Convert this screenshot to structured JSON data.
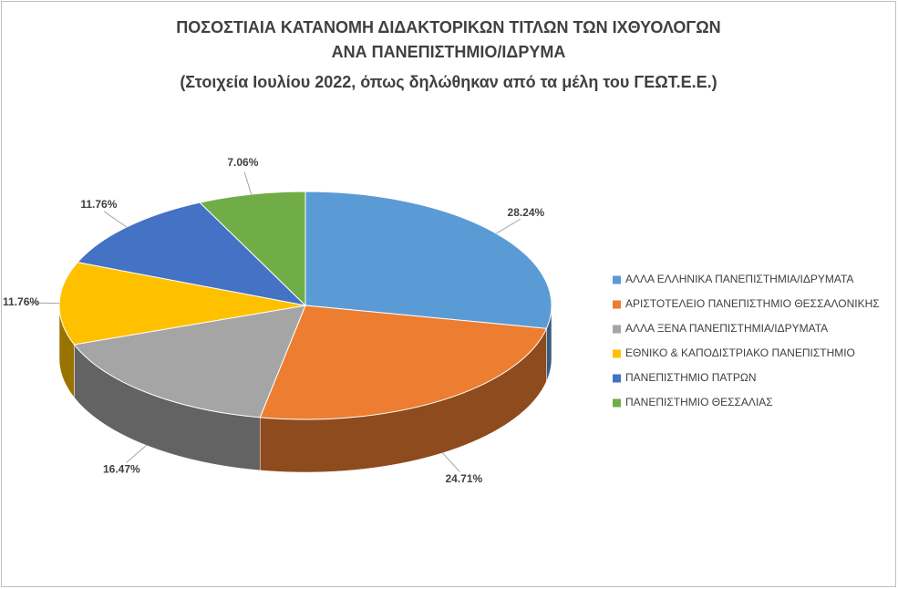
{
  "chart_data": {
    "type": "pie3d",
    "title": [
      "ΠΟΣΟΣΤΙΑΙΑ ΚΑΤΑΝΟΜΗ ΔΙΔΑΚΤΟΡΙΚΩΝ ΤΙΤΛΩΝ ΤΩΝ ΙΧΘΥΟΛΟΓΩΝ",
      "ΑΝΑ ΠΑΝΕΠΙΣΤΗΜΙΟ/ΙΔΡΥΜΑ"
    ],
    "subtitle": "(Στοιχεία Ιουλίου 2022, όπως δηλώθηκαν από τα μέλη του ΓΕΩΤ.Ε.Ε.)",
    "categories": [
      "ΑΛΛΑ ΕΛΛΗΝΙΚΑ ΠΑΝΕΠΙΣΤΗΜΙΑ/ΙΔΡΥΜΑΤΑ",
      "ΑΡΙΣΤΟΤΕΛΕΙΟ ΠΑΝΕΠΙΣΤΗΜΙΟ ΘΕΣΣΑΛΟΝΙΚΗΣ",
      "ΑΛΛΑ ΞΕΝΑ ΠΑΝΕΠΙΣΤΗΜΙΑ/ΙΔΡΥΜΑΤΑ",
      "ΕΘΝΙΚΟ & ΚΑΠΟΔΙΣΤΡΙΑΚΟ ΠΑΝΕΠΙΣΤΗΜΙΟ",
      "ΠΑΝΕΠΙΣΤΗΜΙΟ ΠΑΤΡΩΝ",
      "ΠΑΝΕΠΙΣΤΗΜΙΟ ΘΕΣΣΑΛΙΑΣ"
    ],
    "values": [
      28.24,
      24.71,
      16.47,
      11.76,
      11.76,
      7.06
    ],
    "value_labels": [
      "28.24%",
      "24.71%",
      "16.47%",
      "11.76%",
      "11.76%",
      "7.06%"
    ],
    "colors": [
      "#5b9bd5",
      "#ed7d31",
      "#a5a5a5",
      "#ffc000",
      "#4472c4",
      "#70ad47"
    ],
    "legend": "right"
  }
}
